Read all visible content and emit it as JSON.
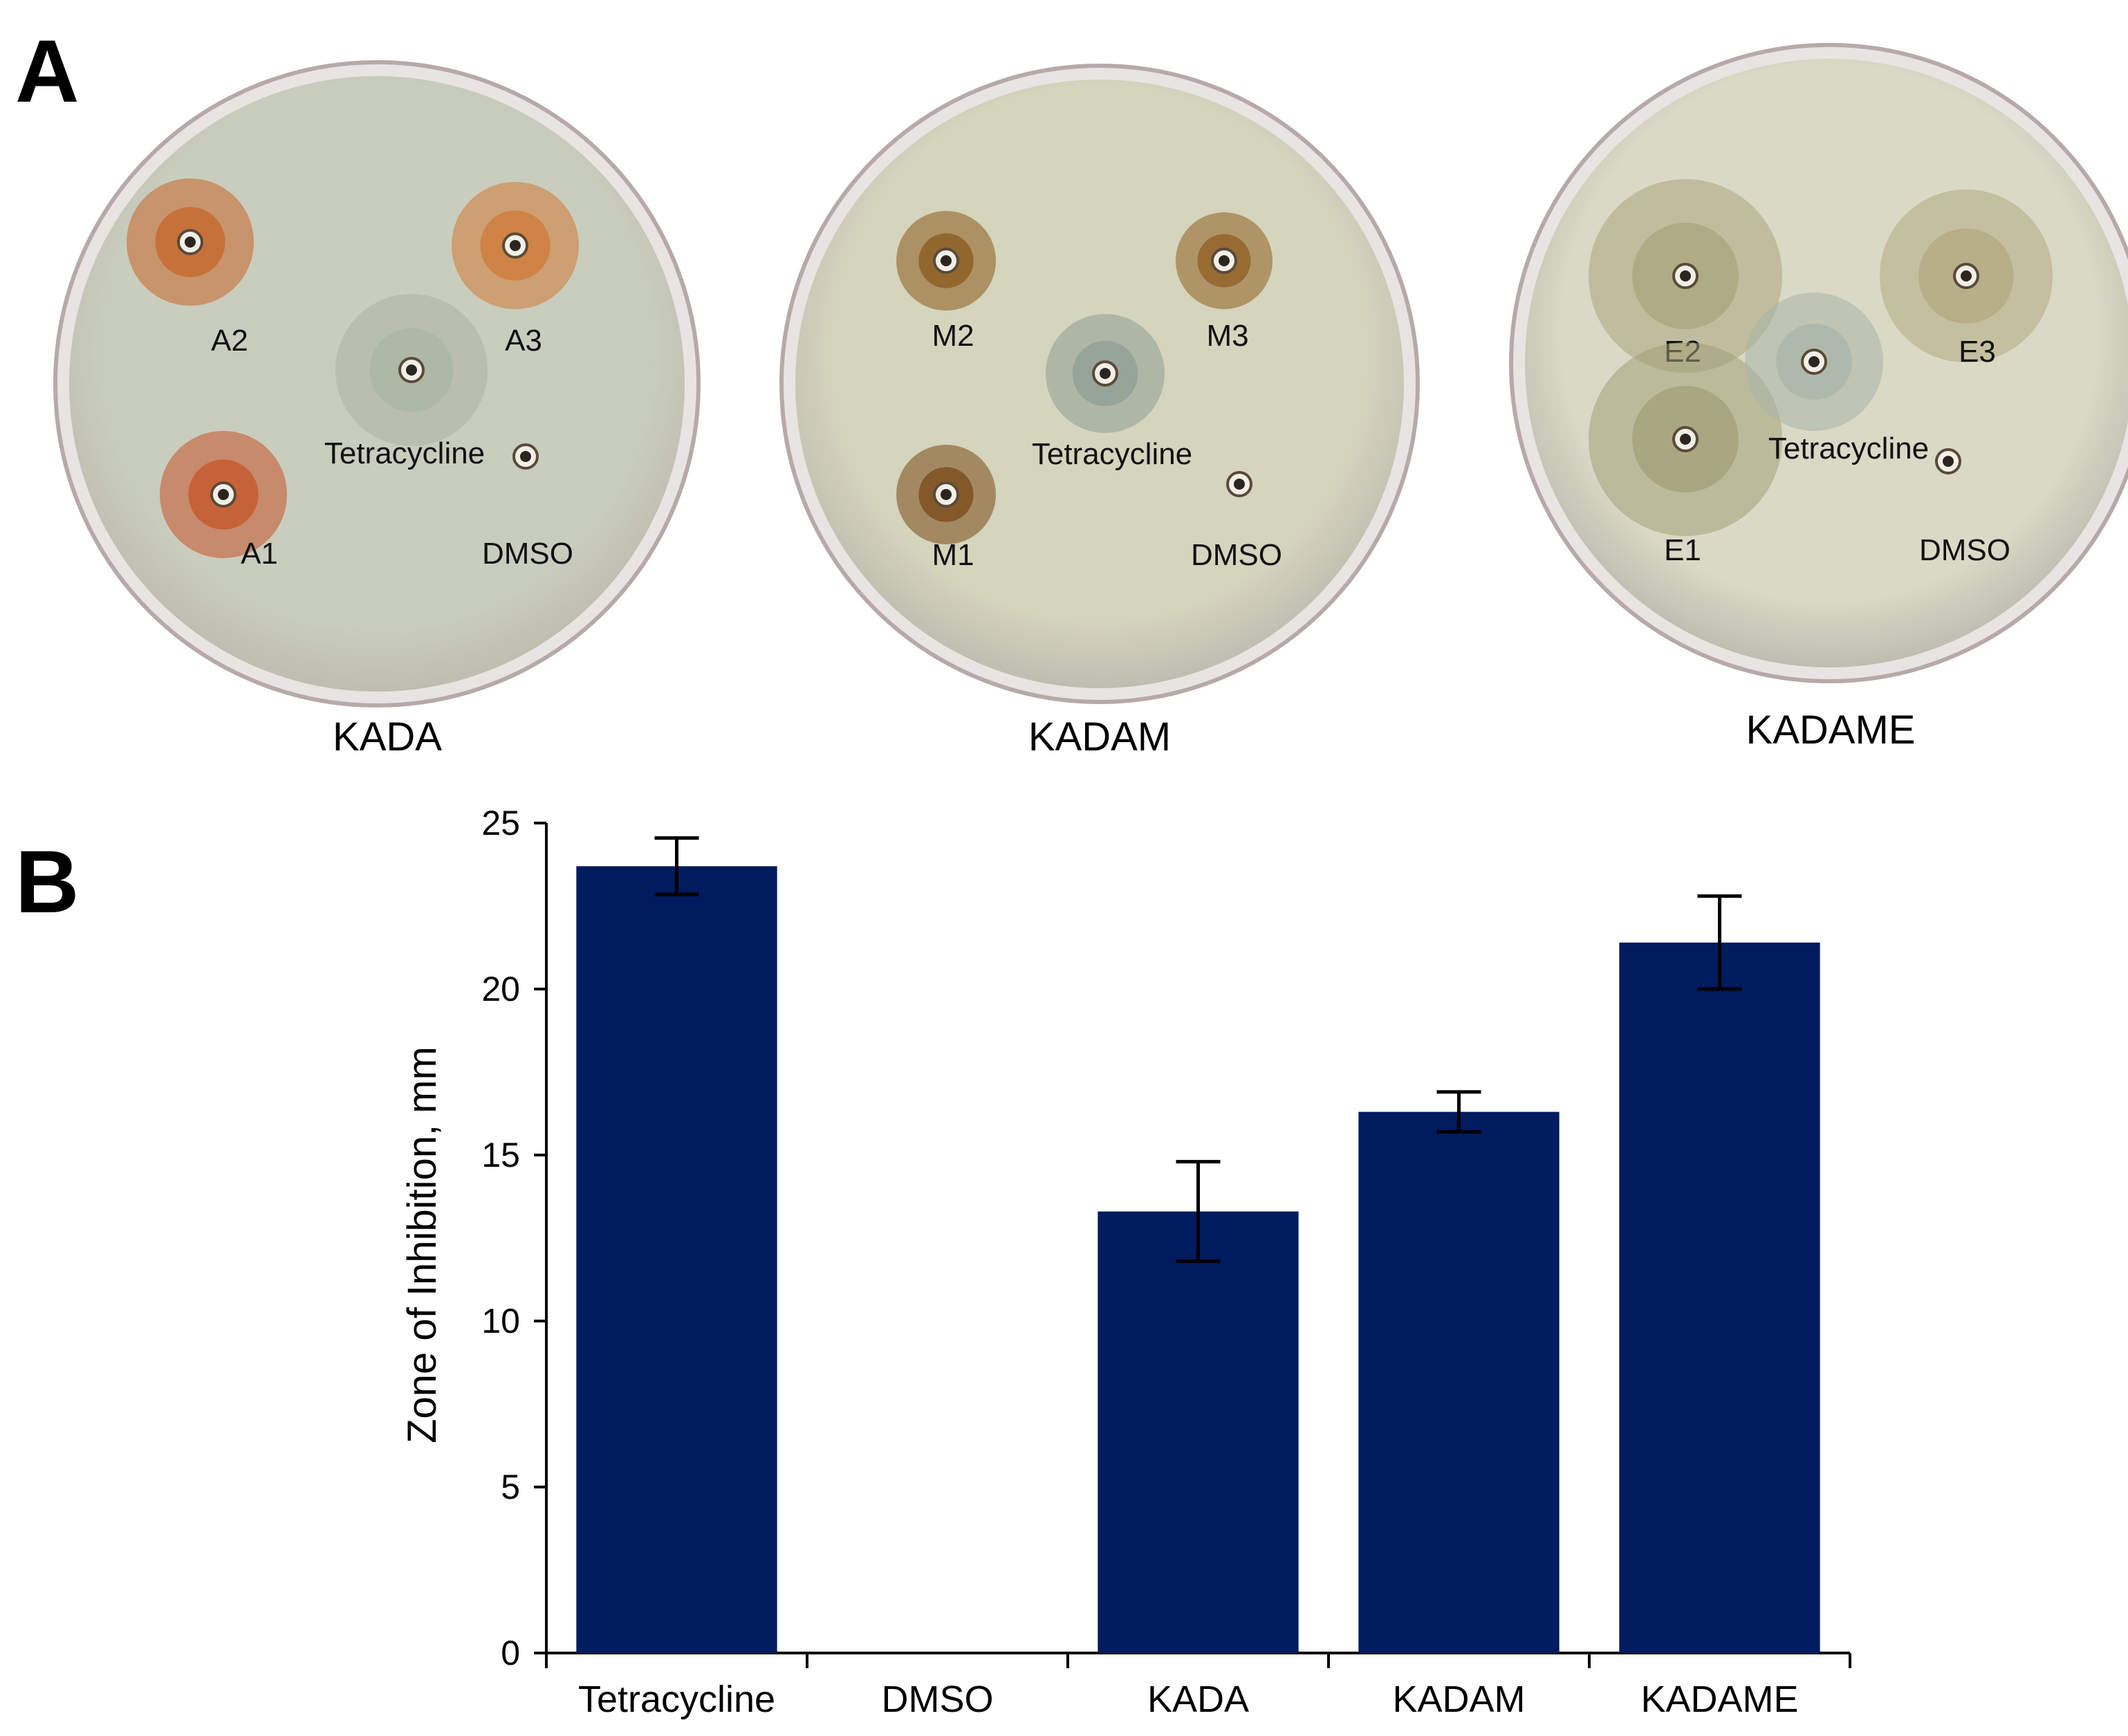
{
  "panels": {
    "a": "A",
    "b": "B"
  },
  "plates": [
    {
      "caption": "KADA",
      "agar": "#c9cdbd",
      "wells": [
        {
          "label": "A2",
          "halo": "#c7662a"
        },
        {
          "label": "A3",
          "halo": "#cf7a35"
        },
        {
          "label": "A1",
          "halo": "#c5542a"
        },
        {
          "label": "Tetracycline",
          "halo": "#a9b5a2"
        },
        {
          "label": "DMSO",
          "halo": ""
        }
      ]
    },
    {
      "caption": "KADAM",
      "agar": "#d5d4bd",
      "wells": [
        {
          "label": "M2",
          "halo": "#8a5a1c"
        },
        {
          "label": "M3",
          "halo": "#8f5e20"
        },
        {
          "label": "M1",
          "halo": "#7a4a18"
        },
        {
          "label": "Tetracycline",
          "halo": "#8e9e94"
        },
        {
          "label": "DMSO",
          "halo": ""
        }
      ]
    },
    {
      "caption": "KADAME",
      "agar": "#d9d9c6",
      "wells": [
        {
          "label": "E2",
          "halo": "#a9a57c"
        },
        {
          "label": "E3",
          "halo": "#b3aa80"
        },
        {
          "label": "E1",
          "halo": "#a3a078"
        },
        {
          "label": "Tetracycline",
          "halo": "#aab4a8"
        },
        {
          "label": "DMSO",
          "halo": ""
        }
      ]
    }
  ],
  "chart_data": {
    "type": "bar",
    "categories": [
      "Tetracycline",
      "DMSO",
      "KADA",
      "KADAM",
      "KADAME"
    ],
    "values": [
      23.7,
      0,
      13.3,
      16.3,
      21.4
    ],
    "errors": [
      0.85,
      0,
      1.5,
      0.6,
      1.4
    ],
    "title": "",
    "xlabel": "",
    "ylabel": "Zone of Inhibition, mm",
    "ylim": [
      0,
      25
    ],
    "yticks": [
      0,
      5,
      10,
      15,
      20,
      25
    ],
    "grid": false,
    "bar_color": "#001b5e"
  }
}
